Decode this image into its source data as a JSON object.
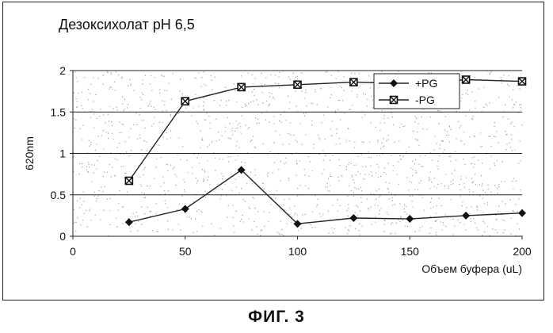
{
  "figure_caption": "ФИГ. 3",
  "chart_data": {
    "type": "line",
    "title": "Дезоксихолат pH 6,5",
    "xlabel": "Объем буфера (uL)",
    "ylabel": "620nm",
    "xlim": [
      0,
      200
    ],
    "ylim": [
      0,
      2
    ],
    "x_ticks": [
      0,
      50,
      100,
      150,
      200
    ],
    "y_ticks": [
      0,
      0.5,
      1,
      1.5,
      2
    ],
    "y_tick_labels": [
      "0",
      "0.5",
      "1",
      "1.5",
      "2"
    ],
    "grid": "horizontal",
    "legend_position": "top-right",
    "x": [
      25,
      50,
      75,
      100,
      125,
      150,
      175,
      200
    ],
    "series": [
      {
        "name": "+PG",
        "marker": "diamond",
        "color": "#222222",
        "values": [
          0.17,
          0.33,
          0.8,
          0.15,
          0.22,
          0.21,
          0.25,
          0.28
        ]
      },
      {
        "name": "-PG",
        "marker": "square",
        "color": "#222222",
        "values": [
          0.67,
          1.63,
          1.8,
          1.83,
          1.86,
          1.84,
          1.89,
          1.87
        ]
      }
    ]
  }
}
